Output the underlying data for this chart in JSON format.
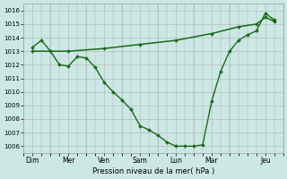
{
  "bg_color": "#cce8e4",
  "grid_color": "#b0b0b0",
  "line_color": "#1a6b1a",
  "xlabel": "Pression niveau de la mer( hPa )",
  "ylim": [
    1005.5,
    1016.5
  ],
  "yticks": [
    1006,
    1007,
    1008,
    1009,
    1010,
    1011,
    1012,
    1013,
    1014,
    1015,
    1016
  ],
  "xlim": [
    0,
    14.5
  ],
  "xtick_labels": [
    "Dim",
    "Mer",
    "Ven",
    "Sam",
    "Lun",
    "Mar",
    "Jeu"
  ],
  "xtick_positions": [
    0.5,
    2.5,
    4.5,
    6.5,
    8.5,
    10.5,
    13.5
  ],
  "series1_x": [
    0.5,
    2.5,
    4.5,
    6.5,
    8.5,
    10.5,
    12.0,
    13.0,
    13.5,
    14.0
  ],
  "series1_y": [
    1013.0,
    1013.0,
    1013.2,
    1013.5,
    1013.8,
    1014.3,
    1014.8,
    1015.0,
    1015.5,
    1015.2
  ],
  "series2_x": [
    0.5,
    1.0,
    1.5,
    2.0,
    2.5,
    3.0,
    3.5,
    4.0,
    4.5,
    5.0,
    5.5,
    6.0,
    6.5,
    7.0,
    7.5,
    8.0,
    8.5,
    9.0,
    9.5,
    10.0,
    10.5,
    11.0,
    11.5,
    12.0,
    12.5,
    13.0,
    13.5,
    14.0
  ],
  "series2_y": [
    1013.3,
    1013.8,
    1013.0,
    1012.0,
    1011.9,
    1012.6,
    1012.5,
    1011.8,
    1010.7,
    1010.0,
    1009.4,
    1008.7,
    1007.5,
    1007.2,
    1006.8,
    1006.3,
    1006.0,
    1006.0,
    1006.0,
    1006.1,
    1009.3,
    1011.5,
    1013.0,
    1013.8,
    1014.2,
    1014.5,
    1015.8,
    1015.3
  ]
}
